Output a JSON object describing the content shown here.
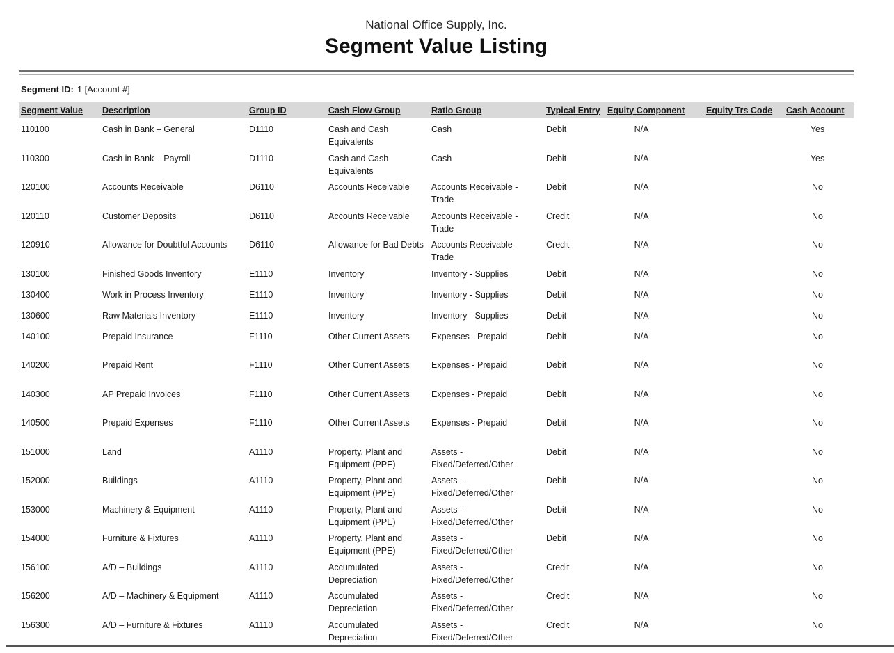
{
  "page": {
    "company_name": "National Office Supply, Inc.",
    "report_title": "Segment Value Listing",
    "segment_id_label": "Segment ID:",
    "segment_id_value": "1 [Account #]"
  },
  "colors": {
    "text": "#1a1a1a",
    "header_bar_background": "#d9d9d9",
    "rule_dark_gray": "#6e6e6e",
    "rule_light_gray": "#b0b0b0",
    "bottom_rule": "#555555"
  },
  "table": {
    "columns": [
      {
        "key": "segment_value",
        "label": "Segment Value"
      },
      {
        "key": "description",
        "label": "Description"
      },
      {
        "key": "group_id",
        "label": "Group ID"
      },
      {
        "key": "cash_flow_group",
        "label": "Cash Flow Group"
      },
      {
        "key": "ratio_group",
        "label": "Ratio Group"
      },
      {
        "key": "typical_entry",
        "label": "Typical Entry"
      },
      {
        "key": "equity_component",
        "label": "Equity Component"
      },
      {
        "key": "equity_trs_code",
        "label": "Equity Trs Code"
      },
      {
        "key": "cash_account",
        "label": "Cash Account"
      }
    ],
    "rows": [
      {
        "segment_value": "110100",
        "description": "Cash in Bank – General",
        "group_id": "D1110",
        "cash_flow_group": "Cash and Cash Equivalents",
        "ratio_group": "Cash",
        "typical_entry": "Debit",
        "equity_component": "N/A",
        "equity_trs_code": "",
        "cash_account": "Yes"
      },
      {
        "segment_value": "110300",
        "description": "Cash in Bank – Payroll",
        "group_id": "D1110",
        "cash_flow_group": "Cash and Cash Equivalents",
        "ratio_group": "Cash",
        "typical_entry": "Debit",
        "equity_component": "N/A",
        "equity_trs_code": "",
        "cash_account": "Yes"
      },
      {
        "segment_value": "120100",
        "description": "Accounts Receivable",
        "group_id": "D6110",
        "cash_flow_group": "Accounts Receivable",
        "ratio_group": "Accounts Receivable - Trade",
        "typical_entry": "Debit",
        "equity_component": "N/A",
        "equity_trs_code": "",
        "cash_account": "No"
      },
      {
        "segment_value": "120110",
        "description": "Customer Deposits",
        "group_id": "D6110",
        "cash_flow_group": "Accounts Receivable",
        "ratio_group": "Accounts Receivable - Trade",
        "typical_entry": "Credit",
        "equity_component": "N/A",
        "equity_trs_code": "",
        "cash_account": "No"
      },
      {
        "segment_value": "120910",
        "description": "Allowance for Doubtful Accounts",
        "group_id": "D6110",
        "cash_flow_group": "Allowance for Bad Debts",
        "ratio_group": "Accounts Receivable - Trade",
        "typical_entry": "Credit",
        "equity_component": "N/A",
        "equity_trs_code": "",
        "cash_account": "No"
      },
      {
        "segment_value": "130100",
        "description": "Finished Goods Inventory",
        "group_id": "E1110",
        "cash_flow_group": "Inventory",
        "ratio_group": "Inventory - Supplies",
        "typical_entry": "Debit",
        "equity_component": "N/A",
        "equity_trs_code": "",
        "cash_account": "No",
        "compact": true
      },
      {
        "segment_value": "130400",
        "description": "Work in Process Inventory",
        "group_id": "E1110",
        "cash_flow_group": "Inventory",
        "ratio_group": "Inventory - Supplies",
        "typical_entry": "Debit",
        "equity_component": "N/A",
        "equity_trs_code": "",
        "cash_account": "No",
        "compact": true
      },
      {
        "segment_value": "130600",
        "description": "Raw Materials Inventory",
        "group_id": "E1110",
        "cash_flow_group": "Inventory",
        "ratio_group": "Inventory - Supplies",
        "typical_entry": "Debit",
        "equity_component": "N/A",
        "equity_trs_code": "",
        "cash_account": "No",
        "compact": true
      },
      {
        "segment_value": "140100",
        "description": "Prepaid Insurance",
        "group_id": "F1110",
        "cash_flow_group": "Other Current Assets",
        "ratio_group": "Expenses - Prepaid",
        "typical_entry": "Debit",
        "equity_component": "N/A",
        "equity_trs_code": "",
        "cash_account": "No"
      },
      {
        "segment_value": "140200",
        "description": "Prepaid Rent",
        "group_id": "F1110",
        "cash_flow_group": "Other Current Assets",
        "ratio_group": "Expenses - Prepaid",
        "typical_entry": "Debit",
        "equity_component": "N/A",
        "equity_trs_code": "",
        "cash_account": "No"
      },
      {
        "segment_value": "140300",
        "description": "AP Prepaid Invoices",
        "group_id": "F1110",
        "cash_flow_group": "Other Current Assets",
        "ratio_group": "Expenses - Prepaid",
        "typical_entry": "Debit",
        "equity_component": "N/A",
        "equity_trs_code": "",
        "cash_account": "No"
      },
      {
        "segment_value": "140500",
        "description": "Prepaid Expenses",
        "group_id": "F1110",
        "cash_flow_group": "Other Current Assets",
        "ratio_group": "Expenses - Prepaid",
        "typical_entry": "Debit",
        "equity_component": "N/A",
        "equity_trs_code": "",
        "cash_account": "No"
      },
      {
        "segment_value": "151000",
        "description": "Land",
        "group_id": "A1110",
        "cash_flow_group": "Property, Plant and Equipment (PPE)",
        "ratio_group": "Assets - Fixed/Deferred/Other",
        "typical_entry": "Debit",
        "equity_component": "N/A",
        "equity_trs_code": "",
        "cash_account": "No"
      },
      {
        "segment_value": "152000",
        "description": "Buildings",
        "group_id": "A1110",
        "cash_flow_group": "Property, Plant and Equipment (PPE)",
        "ratio_group": "Assets - Fixed/Deferred/Other",
        "typical_entry": "Debit",
        "equity_component": "N/A",
        "equity_trs_code": "",
        "cash_account": "No"
      },
      {
        "segment_value": "153000",
        "description": "Machinery & Equipment",
        "group_id": "A1110",
        "cash_flow_group": "Property, Plant and Equipment (PPE)",
        "ratio_group": "Assets - Fixed/Deferred/Other",
        "typical_entry": "Debit",
        "equity_component": "N/A",
        "equity_trs_code": "",
        "cash_account": "No"
      },
      {
        "segment_value": "154000",
        "description": "Furniture & Fixtures",
        "group_id": "A1110",
        "cash_flow_group": "Property, Plant and Equipment (PPE)",
        "ratio_group": "Assets - Fixed/Deferred/Other",
        "typical_entry": "Debit",
        "equity_component": "N/A",
        "equity_trs_code": "",
        "cash_account": "No"
      },
      {
        "segment_value": "156100",
        "description": "A/D – Buildings",
        "group_id": "A1110",
        "cash_flow_group": "Accumulated Depreciation",
        "ratio_group": "Assets - Fixed/Deferred/Other",
        "typical_entry": "Credit",
        "equity_component": "N/A",
        "equity_trs_code": "",
        "cash_account": "No"
      },
      {
        "segment_value": "156200",
        "description": "A/D – Machinery & Equipment",
        "group_id": "A1110",
        "cash_flow_group": "Accumulated Depreciation",
        "ratio_group": "Assets - Fixed/Deferred/Other",
        "typical_entry": "Credit",
        "equity_component": "N/A",
        "equity_trs_code": "",
        "cash_account": "No"
      },
      {
        "segment_value": "156300",
        "description": "A/D – Furniture & Fixtures",
        "group_id": "A1110",
        "cash_flow_group": "Accumulated Depreciation",
        "ratio_group": "Assets - Fixed/Deferred/Other",
        "typical_entry": "Credit",
        "equity_component": "N/A",
        "equity_trs_code": "",
        "cash_account": "No"
      }
    ]
  }
}
